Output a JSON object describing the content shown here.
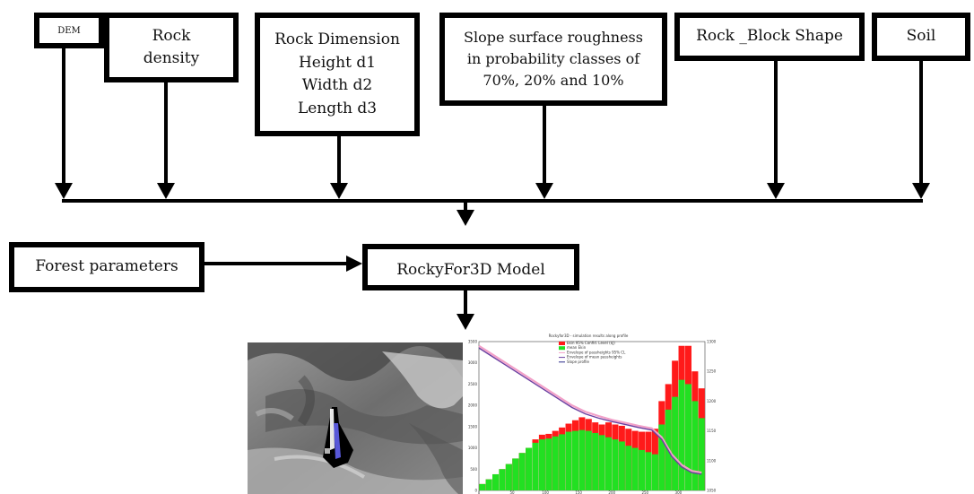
{
  "inputs": {
    "dem": "DEM",
    "rock_density": "Rock\ndensity",
    "rock_dimension": "Rock Dimension\nHeight d1\nWidth d2\nLength d3",
    "slope_roughness": "Slope surface roughness\nin probability classes of\n70%, 20% and 10%",
    "block_shape": "Rock _Block Shape",
    "soil": "Soil"
  },
  "forest_parameters": "Forest parameters",
  "model": "RockyFor3D Model",
  "chart_data": {
    "type": "bar",
    "title": "Rockyfor3D - simulation results along profile",
    "legend": [
      "Ekin 95% Confid. Level (kJ)",
      "mean Ekin",
      "Envelope of passheights 95% CL",
      "Envelope of mean passheights",
      "Slope profile"
    ],
    "legend_placement": "top-left",
    "colors": {
      "upper": "#ff1a1a",
      "lower": "#22e022",
      "profile": "#6b3fa0",
      "passheight": "#f2a0c8"
    },
    "x_ticks": [
      "0",
      "50",
      "100",
      "150",
      "200",
      "250",
      "300"
    ],
    "y_ticks": [
      "0",
      "500",
      "1000",
      "1500",
      "2000",
      "2500",
      "3000",
      "3500"
    ],
    "y2_ticks": [
      "1050",
      "1100",
      "1150",
      "1200",
      "1250",
      "1300"
    ],
    "xlim": [
      0,
      330
    ],
    "ylim": [
      0,
      3500
    ],
    "bar_width": 10,
    "bars": [
      {
        "x": 5,
        "upper": 150,
        "lower": 150
      },
      {
        "x": 15,
        "upper": 260,
        "lower": 260
      },
      {
        "x": 25,
        "upper": 380,
        "lower": 380
      },
      {
        "x": 35,
        "upper": 500,
        "lower": 500
      },
      {
        "x": 45,
        "upper": 620,
        "lower": 620
      },
      {
        "x": 55,
        "upper": 750,
        "lower": 750
      },
      {
        "x": 65,
        "upper": 880,
        "lower": 880
      },
      {
        "x": 75,
        "upper": 1000,
        "lower": 1000
      },
      {
        "x": 85,
        "upper": 1200,
        "lower": 1120
      },
      {
        "x": 95,
        "upper": 1310,
        "lower": 1200
      },
      {
        "x": 105,
        "upper": 1330,
        "lower": 1220
      },
      {
        "x": 115,
        "upper": 1400,
        "lower": 1270
      },
      {
        "x": 125,
        "upper": 1480,
        "lower": 1320
      },
      {
        "x": 135,
        "upper": 1570,
        "lower": 1380
      },
      {
        "x": 145,
        "upper": 1650,
        "lower": 1400
      },
      {
        "x": 155,
        "upper": 1720,
        "lower": 1420
      },
      {
        "x": 165,
        "upper": 1680,
        "lower": 1400
      },
      {
        "x": 175,
        "upper": 1600,
        "lower": 1350
      },
      {
        "x": 185,
        "upper": 1550,
        "lower": 1300
      },
      {
        "x": 195,
        "upper": 1600,
        "lower": 1250
      },
      {
        "x": 205,
        "upper": 1550,
        "lower": 1200
      },
      {
        "x": 215,
        "upper": 1520,
        "lower": 1150
      },
      {
        "x": 225,
        "upper": 1450,
        "lower": 1050
      },
      {
        "x": 235,
        "upper": 1400,
        "lower": 1000
      },
      {
        "x": 245,
        "upper": 1380,
        "lower": 950
      },
      {
        "x": 255,
        "upper": 1380,
        "lower": 900
      },
      {
        "x": 265,
        "upper": 1450,
        "lower": 850
      },
      {
        "x": 275,
        "upper": 2100,
        "lower": 1550
      },
      {
        "x": 285,
        "upper": 2500,
        "lower": 1900
      },
      {
        "x": 295,
        "upper": 3050,
        "lower": 2200
      },
      {
        "x": 305,
        "upper": 3400,
        "lower": 2600
      },
      {
        "x": 315,
        "upper": 3400,
        "lower": 2500
      },
      {
        "x": 325,
        "upper": 2800,
        "lower": 2100
      },
      {
        "x": 335,
        "upper": 2400,
        "lower": 1700
      }
    ],
    "profile": [
      [
        0,
        3350
      ],
      [
        20,
        3150
      ],
      [
        40,
        2950
      ],
      [
        60,
        2750
      ],
      [
        80,
        2550
      ],
      [
        100,
        2350
      ],
      [
        120,
        2150
      ],
      [
        140,
        1950
      ],
      [
        160,
        1800
      ],
      [
        180,
        1700
      ],
      [
        200,
        1620
      ],
      [
        220,
        1550
      ],
      [
        240,
        1480
      ],
      [
        260,
        1420
      ],
      [
        275,
        1200
      ],
      [
        290,
        800
      ],
      [
        305,
        550
      ],
      [
        320,
        420
      ],
      [
        335,
        380
      ]
    ],
    "passheight": [
      [
        0,
        3400
      ],
      [
        20,
        3200
      ],
      [
        40,
        3000
      ],
      [
        60,
        2800
      ],
      [
        80,
        2600
      ],
      [
        100,
        2400
      ],
      [
        120,
        2200
      ],
      [
        140,
        2000
      ],
      [
        160,
        1850
      ],
      [
        180,
        1750
      ],
      [
        200,
        1660
      ],
      [
        220,
        1590
      ],
      [
        240,
        1520
      ],
      [
        260,
        1460
      ],
      [
        275,
        1250
      ],
      [
        290,
        850
      ],
      [
        305,
        600
      ],
      [
        320,
        460
      ],
      [
        335,
        420
      ]
    ]
  }
}
